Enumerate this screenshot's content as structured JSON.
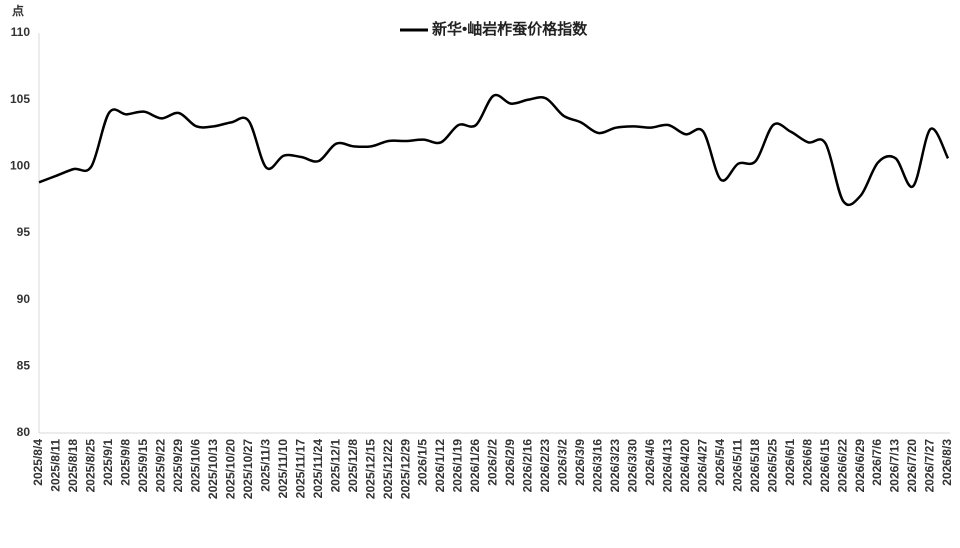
{
  "chart_data": {
    "type": "line",
    "title": "新华•岫岩柞蚕价格指数",
    "y_label": "点",
    "categories": [
      "2025/8/4",
      "2025/8/11",
      "2025/8/18",
      "2025/8/25",
      "2025/9/1",
      "2025/9/8",
      "2025/9/15",
      "2025/9/22",
      "2025/9/29",
      "2025/10/6",
      "2025/10/13",
      "2025/10/20",
      "2025/10/27",
      "2025/11/3",
      "2025/11/10",
      "2025/11/17",
      "2025/11/24",
      "2025/12/1",
      "2025/12/8",
      "2025/12/15",
      "2025/12/22",
      "2025/12/29",
      "2026/1/5",
      "2026/1/12",
      "2026/1/19",
      "2026/1/26",
      "2026/2/2",
      "2026/2/9",
      "2026/2/16",
      "2026/2/23",
      "2026/3/2",
      "2026/3/9",
      "2026/3/16",
      "2026/3/23",
      "2026/3/30",
      "2026/4/6",
      "2026/4/13",
      "2026/4/20",
      "2026/4/27",
      "2026/5/4",
      "2026/5/11",
      "2026/5/18",
      "2026/5/25",
      "2026/6/1",
      "2026/6/8",
      "2026/6/15",
      "2026/6/22",
      "2026/6/29",
      "2026/7/6",
      "2026/7/13",
      "2026/7/20",
      "2026/7/27",
      "2026/8/3"
    ],
    "series": [
      {
        "name": "新华•岫岩柞蚕价格指数",
        "color": "#000000",
        "values": [
          98.8,
          99.3,
          99.8,
          100.0,
          104.0,
          103.9,
          104.1,
          103.6,
          104.0,
          103.0,
          103.0,
          103.3,
          103.4,
          99.9,
          100.8,
          100.7,
          100.4,
          101.7,
          101.5,
          101.5,
          101.9,
          101.9,
          102.0,
          101.8,
          103.1,
          103.1,
          105.3,
          104.7,
          105.0,
          105.1,
          103.8,
          103.3,
          102.5,
          102.9,
          103.0,
          102.9,
          103.1,
          102.4,
          102.6,
          99.0,
          100.2,
          100.4,
          103.1,
          102.6,
          101.8,
          101.7,
          97.4,
          97.8,
          100.3,
          100.6,
          98.5,
          102.8,
          100.6
        ]
      }
    ],
    "ylim": [
      80,
      110
    ],
    "yticks": [
      80,
      85,
      90,
      95,
      100,
      105,
      110
    ],
    "grid": false,
    "legend": "top"
  }
}
